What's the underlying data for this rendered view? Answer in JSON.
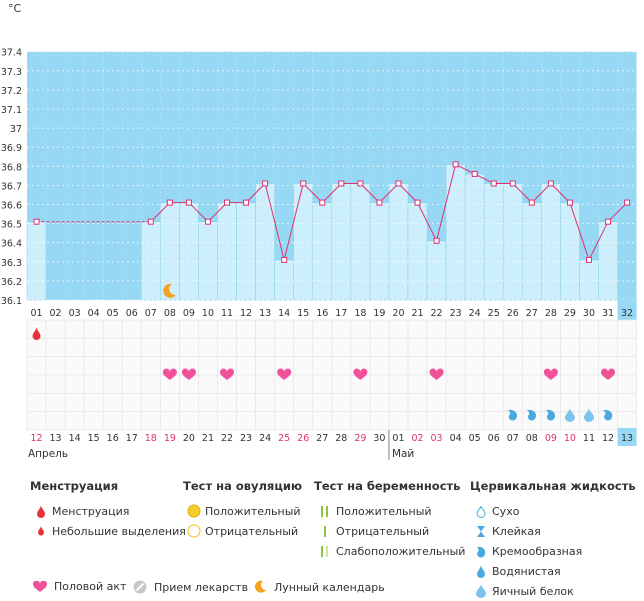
{
  "chart_data": {
    "type": "line",
    "unit_label": "°C",
    "y_ticks": [
      "37.4",
      "37.3",
      "37.2",
      "37.1",
      "37",
      "36.9",
      "36.8",
      "36.7",
      "36.6",
      "36.5",
      "36.4",
      "36.3",
      "36.2",
      "36.1"
    ],
    "ylim": [
      36.1,
      37.4
    ],
    "days": [
      "01",
      "02",
      "03",
      "04",
      "05",
      "06",
      "07",
      "08",
      "09",
      "10",
      "11",
      "12",
      "13",
      "14",
      "15",
      "16",
      "17",
      "18",
      "19",
      "20",
      "21",
      "22",
      "23",
      "24",
      "25",
      "26",
      "27",
      "28",
      "29",
      "30",
      "31",
      "32"
    ],
    "temperatures": [
      36.51,
      null,
      null,
      null,
      null,
      null,
      36.51,
      36.61,
      36.61,
      36.51,
      36.61,
      36.61,
      36.71,
      36.31,
      36.71,
      36.61,
      36.71,
      36.71,
      36.61,
      36.71,
      36.61,
      36.41,
      36.81,
      36.76,
      36.71,
      36.71,
      36.61,
      36.71,
      36.61,
      36.31,
      36.51,
      36.61
    ],
    "dates": [
      "12",
      "13",
      "14",
      "15",
      "16",
      "17",
      "18",
      "19",
      "20",
      "21",
      "22",
      "23",
      "24",
      "25",
      "26",
      "27",
      "28",
      "29",
      "30",
      "01",
      "02",
      "03",
      "04",
      "05",
      "06",
      "07",
      "08",
      "09",
      "10",
      "11",
      "12",
      "13"
    ],
    "date_colors": [
      "#e03070",
      "#333333",
      "#333333",
      "#333333",
      "#333333",
      "#333333",
      "#e03070",
      "#e03070",
      "#333333",
      "#333333",
      "#333333",
      "#333333",
      "#333333",
      "#e03070",
      "#e03070",
      "#333333",
      "#333333",
      "#e03070",
      "#333333",
      "#333333",
      "#e03070",
      "#e03070",
      "#333333",
      "#333333",
      "#333333",
      "#333333",
      "#333333",
      "#e03070",
      "#e03070",
      "#333333",
      "#333333",
      "#333333"
    ],
    "months": [
      "Апрель",
      "Май"
    ],
    "menstruation_days": [
      1
    ],
    "intercourse_days": [
      8,
      9,
      11,
      14,
      18,
      22,
      28,
      31
    ],
    "moon_days": [
      8
    ],
    "cervical_fluid": [
      {
        "day": 26,
        "kind": "creamy"
      },
      {
        "day": 27,
        "kind": "creamy"
      },
      {
        "day": 28,
        "kind": "creamy"
      },
      {
        "day": 29,
        "kind": "egg-white"
      },
      {
        "day": 30,
        "kind": "egg-white"
      },
      {
        "day": 31,
        "kind": "creamy"
      }
    ],
    "colors": {
      "coverline_bg": "#97d9f4",
      "bar": "#cdeffc",
      "bar_stroke": "#86cde8",
      "line": "#e03070",
      "today": "#97d9f4",
      "heart": "#f0519a",
      "drop": "#e8333f",
      "fluid": "#4aa9e0",
      "moon": "#f5a21e"
    }
  },
  "legend": {
    "menstruation": {
      "title": "Менструация",
      "items": [
        "Менструация",
        "Небольшие выделения"
      ]
    },
    "ovulation": {
      "title": "Тест на овуляцию",
      "items": [
        "Положительный",
        "Отрицательный"
      ]
    },
    "pregnancy": {
      "title": "Тест на беременность",
      "items": [
        "Положительный",
        "Отрицательный",
        "Слабоположительный"
      ]
    },
    "fluid": {
      "title": "Цервикальная жидкость",
      "items": [
        "Сухо",
        "Клейкая",
        "Кремообразная",
        "Водянистая",
        "Яичный белок"
      ]
    },
    "bottom": [
      "Половой акт",
      "Прием лекарств",
      "Лунный календарь"
    ]
  }
}
